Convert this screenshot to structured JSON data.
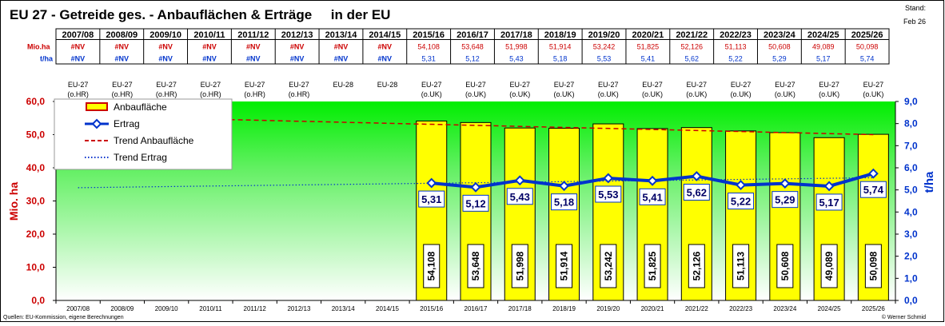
{
  "title": "EU 27 - Getreide ges. - Anbauflächen & Erträge     in der EU",
  "stand_label": "Stand:",
  "stand_value": "Feb 26",
  "table": {
    "row_label_area": "Mio.ha",
    "row_label_yield": "t/ha",
    "seasons": [
      "2007/08",
      "2008/09",
      "2009/10",
      "2010/11",
      "2011/12",
      "2012/13",
      "2013/14",
      "2014/15",
      "2015/16",
      "2016/17",
      "2017/18",
      "2018/19",
      "2019/20",
      "2020/21",
      "2021/22",
      "2022/23",
      "2023/24",
      "2024/25",
      "2025/26"
    ],
    "area": [
      "#NV",
      "#NV",
      "#NV",
      "#NV",
      "#NV",
      "#NV",
      "#NV",
      "#NV",
      "54,108",
      "53,648",
      "51,998",
      "51,914",
      "53,242",
      "51,825",
      "52,126",
      "51,113",
      "50,608",
      "49,089",
      "50,098"
    ],
    "yield": [
      "#NV",
      "#NV",
      "#NV",
      "#NV",
      "#NV",
      "#NV",
      "#NV",
      "#NV",
      "5,31",
      "5,12",
      "5,43",
      "5,18",
      "5,53",
      "5,41",
      "5,62",
      "5,22",
      "5,29",
      "5,17",
      "5,74"
    ]
  },
  "region_labels": [
    [
      "EU-27",
      "(o.HR)"
    ],
    [
      "EU-27",
      "(o.HR)"
    ],
    [
      "EU-27",
      "(o.HR)"
    ],
    [
      "EU-27",
      "(o.HR)"
    ],
    [
      "EU-27",
      "(o.HR)"
    ],
    [
      "EU-27",
      "(o.HR)"
    ],
    [
      "EU-28",
      ""
    ],
    [
      "EU-28",
      ""
    ],
    [
      "EU-27",
      "(o.UK)"
    ],
    [
      "EU-27",
      "(o.UK)"
    ],
    [
      "EU-27",
      "(o.UK)"
    ],
    [
      "EU-27",
      "(o.UK)"
    ],
    [
      "EU-27",
      "(o.UK)"
    ],
    [
      "EU-27",
      "(o.UK)"
    ],
    [
      "EU-27",
      "(o.UK)"
    ],
    [
      "EU-27",
      "(o.UK)"
    ],
    [
      "EU-27",
      "(o.UK)"
    ],
    [
      "EU-27",
      "(o.UK)"
    ],
    [
      "EU-27",
      "(o.UK)"
    ]
  ],
  "chart_data": {
    "type": "bar",
    "categories": [
      "2007/08",
      "2008/09",
      "2009/10",
      "2010/11",
      "2011/12",
      "2012/13",
      "2013/14",
      "2014/15",
      "2015/16",
      "2016/17",
      "2017/18",
      "2018/19",
      "2019/20",
      "2020/21",
      "2021/22",
      "2022/23",
      "2023/24",
      "2024/25",
      "2025/26"
    ],
    "series": [
      {
        "name": "Anbaufläche",
        "type": "bar",
        "axis": "left",
        "color": "#ffff00",
        "values": [
          null,
          null,
          null,
          null,
          null,
          null,
          null,
          null,
          54.108,
          53.648,
          51.998,
          51.914,
          53.242,
          51.825,
          52.126,
          51.113,
          50.608,
          49.089,
          50.098
        ],
        "labels": [
          "",
          "",
          "",
          "",
          "",
          "",
          "",
          "",
          "54,108",
          "53,648",
          "51,998",
          "51,914",
          "53,242",
          "51,825",
          "52,126",
          "51,113",
          "50,608",
          "49,089",
          "50,098"
        ]
      },
      {
        "name": "Ertrag",
        "type": "line",
        "axis": "right",
        "color": "#0033cc",
        "values": [
          null,
          null,
          null,
          null,
          null,
          null,
          null,
          null,
          5.31,
          5.12,
          5.43,
          5.18,
          5.53,
          5.41,
          5.62,
          5.22,
          5.29,
          5.17,
          5.74
        ],
        "labels": [
          "",
          "",
          "",
          "",
          "",
          "",
          "",
          "",
          "5,31",
          "5,12",
          "5,43",
          "5,18",
          "5,53",
          "5,41",
          "5,62",
          "5,22",
          "5,29",
          "5,17",
          "5,74"
        ]
      },
      {
        "name": "Trend Anbaufläche",
        "type": "trend",
        "axis": "left",
        "color": "#cc0000",
        "dash": "dashed",
        "start": 55.6,
        "end": 50.0
      },
      {
        "name": "Trend Ertrag",
        "type": "trend",
        "axis": "right",
        "color": "#0033cc",
        "dash": "dotted",
        "start": 5.1,
        "end": 5.55
      }
    ],
    "ylabel_left": "Mio. ha",
    "ylabel_right": "t/ha",
    "ylim_left": [
      0,
      60
    ],
    "ylim_right": [
      0,
      9
    ],
    "yticks_left": [
      "0,0",
      "10,0",
      "20,0",
      "30,0",
      "40,0",
      "50,0",
      "60,0"
    ],
    "yticks_right": [
      "0,0",
      "1,0",
      "2,0",
      "3,0",
      "4,0",
      "5,0",
      "6,0",
      "7,0",
      "8,0",
      "9,0"
    ],
    "legend_position": "top-left",
    "grid": false
  },
  "footer_left": "Quellen: EU-Kommission, eigene Berechnungen",
  "footer_right": "© Werner Schmid"
}
